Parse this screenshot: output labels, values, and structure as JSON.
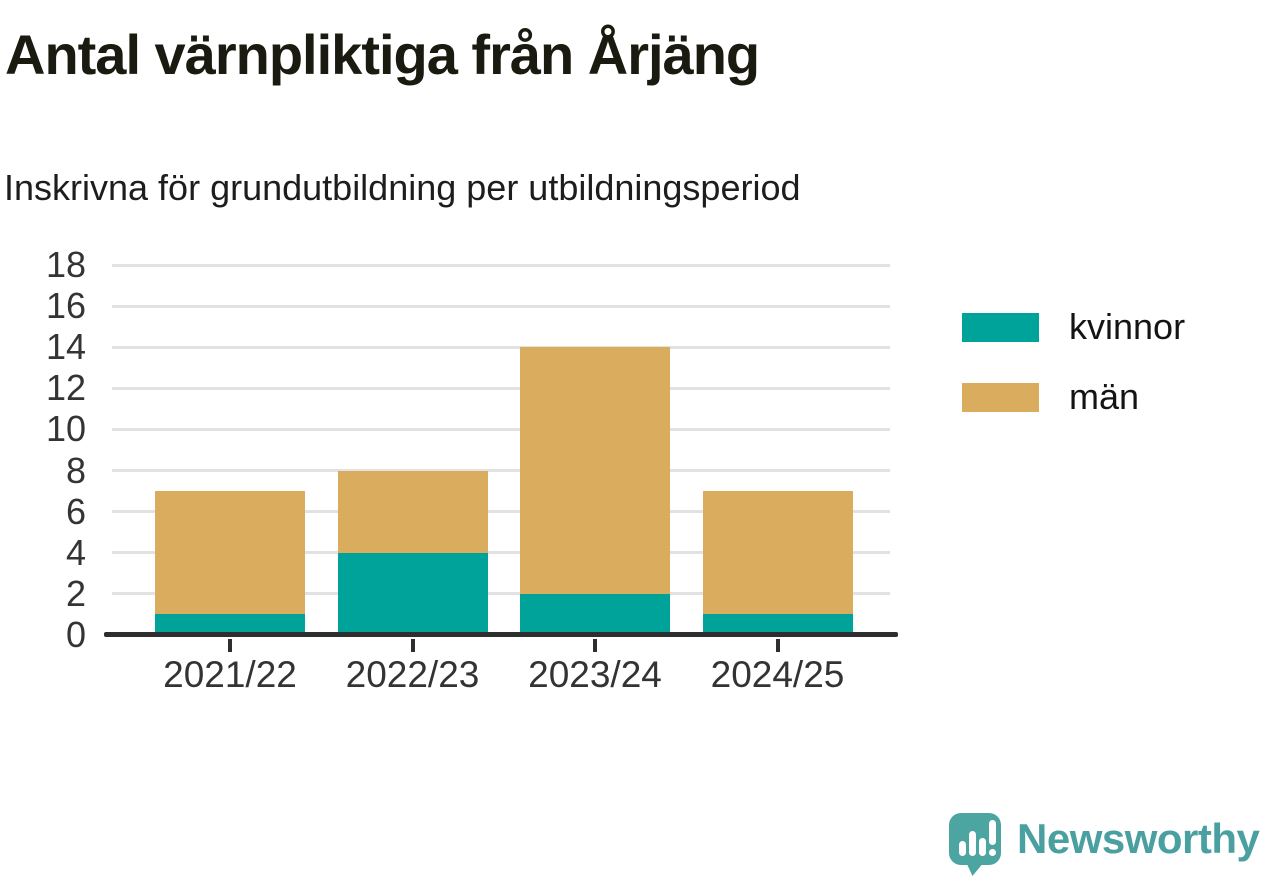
{
  "chart_data": {
    "type": "bar",
    "stacked": true,
    "title": "Antal värnpliktiga från Årjäng",
    "subtitle": "Inskrivna för grundutbildning per utbildningsperiod",
    "categories": [
      "2021/22",
      "2022/23",
      "2023/24",
      "2024/25"
    ],
    "series": [
      {
        "name": "kvinnor",
        "color": "#00a39a",
        "values": [
          1,
          4,
          2,
          1
        ]
      },
      {
        "name": "män",
        "color": "#d9ac5e",
        "values": [
          6,
          4,
          12,
          6
        ]
      }
    ],
    "totals": [
      7,
      8,
      14,
      7
    ],
    "ylim": [
      0,
      18
    ],
    "yticks": [
      0,
      2,
      4,
      6,
      8,
      10,
      12,
      14,
      16,
      18
    ],
    "grid": true,
    "legend_position": "right"
  },
  "legend": {
    "items": [
      {
        "label": "kvinnor",
        "color": "#00a39a"
      },
      {
        "label": "män",
        "color": "#d9ac5e"
      }
    ]
  },
  "branding": {
    "wordmark": "Newsworthy",
    "color": "#4a9fa0",
    "icon_color": "#4da5a2"
  },
  "colors": {
    "kvinnor": "#00a39a",
    "man": "#d9ac5e",
    "axis": "#2e2e2e",
    "gridline": "#e2e2e2",
    "title_text": "#1a1a10",
    "tick_text": "#333333"
  }
}
